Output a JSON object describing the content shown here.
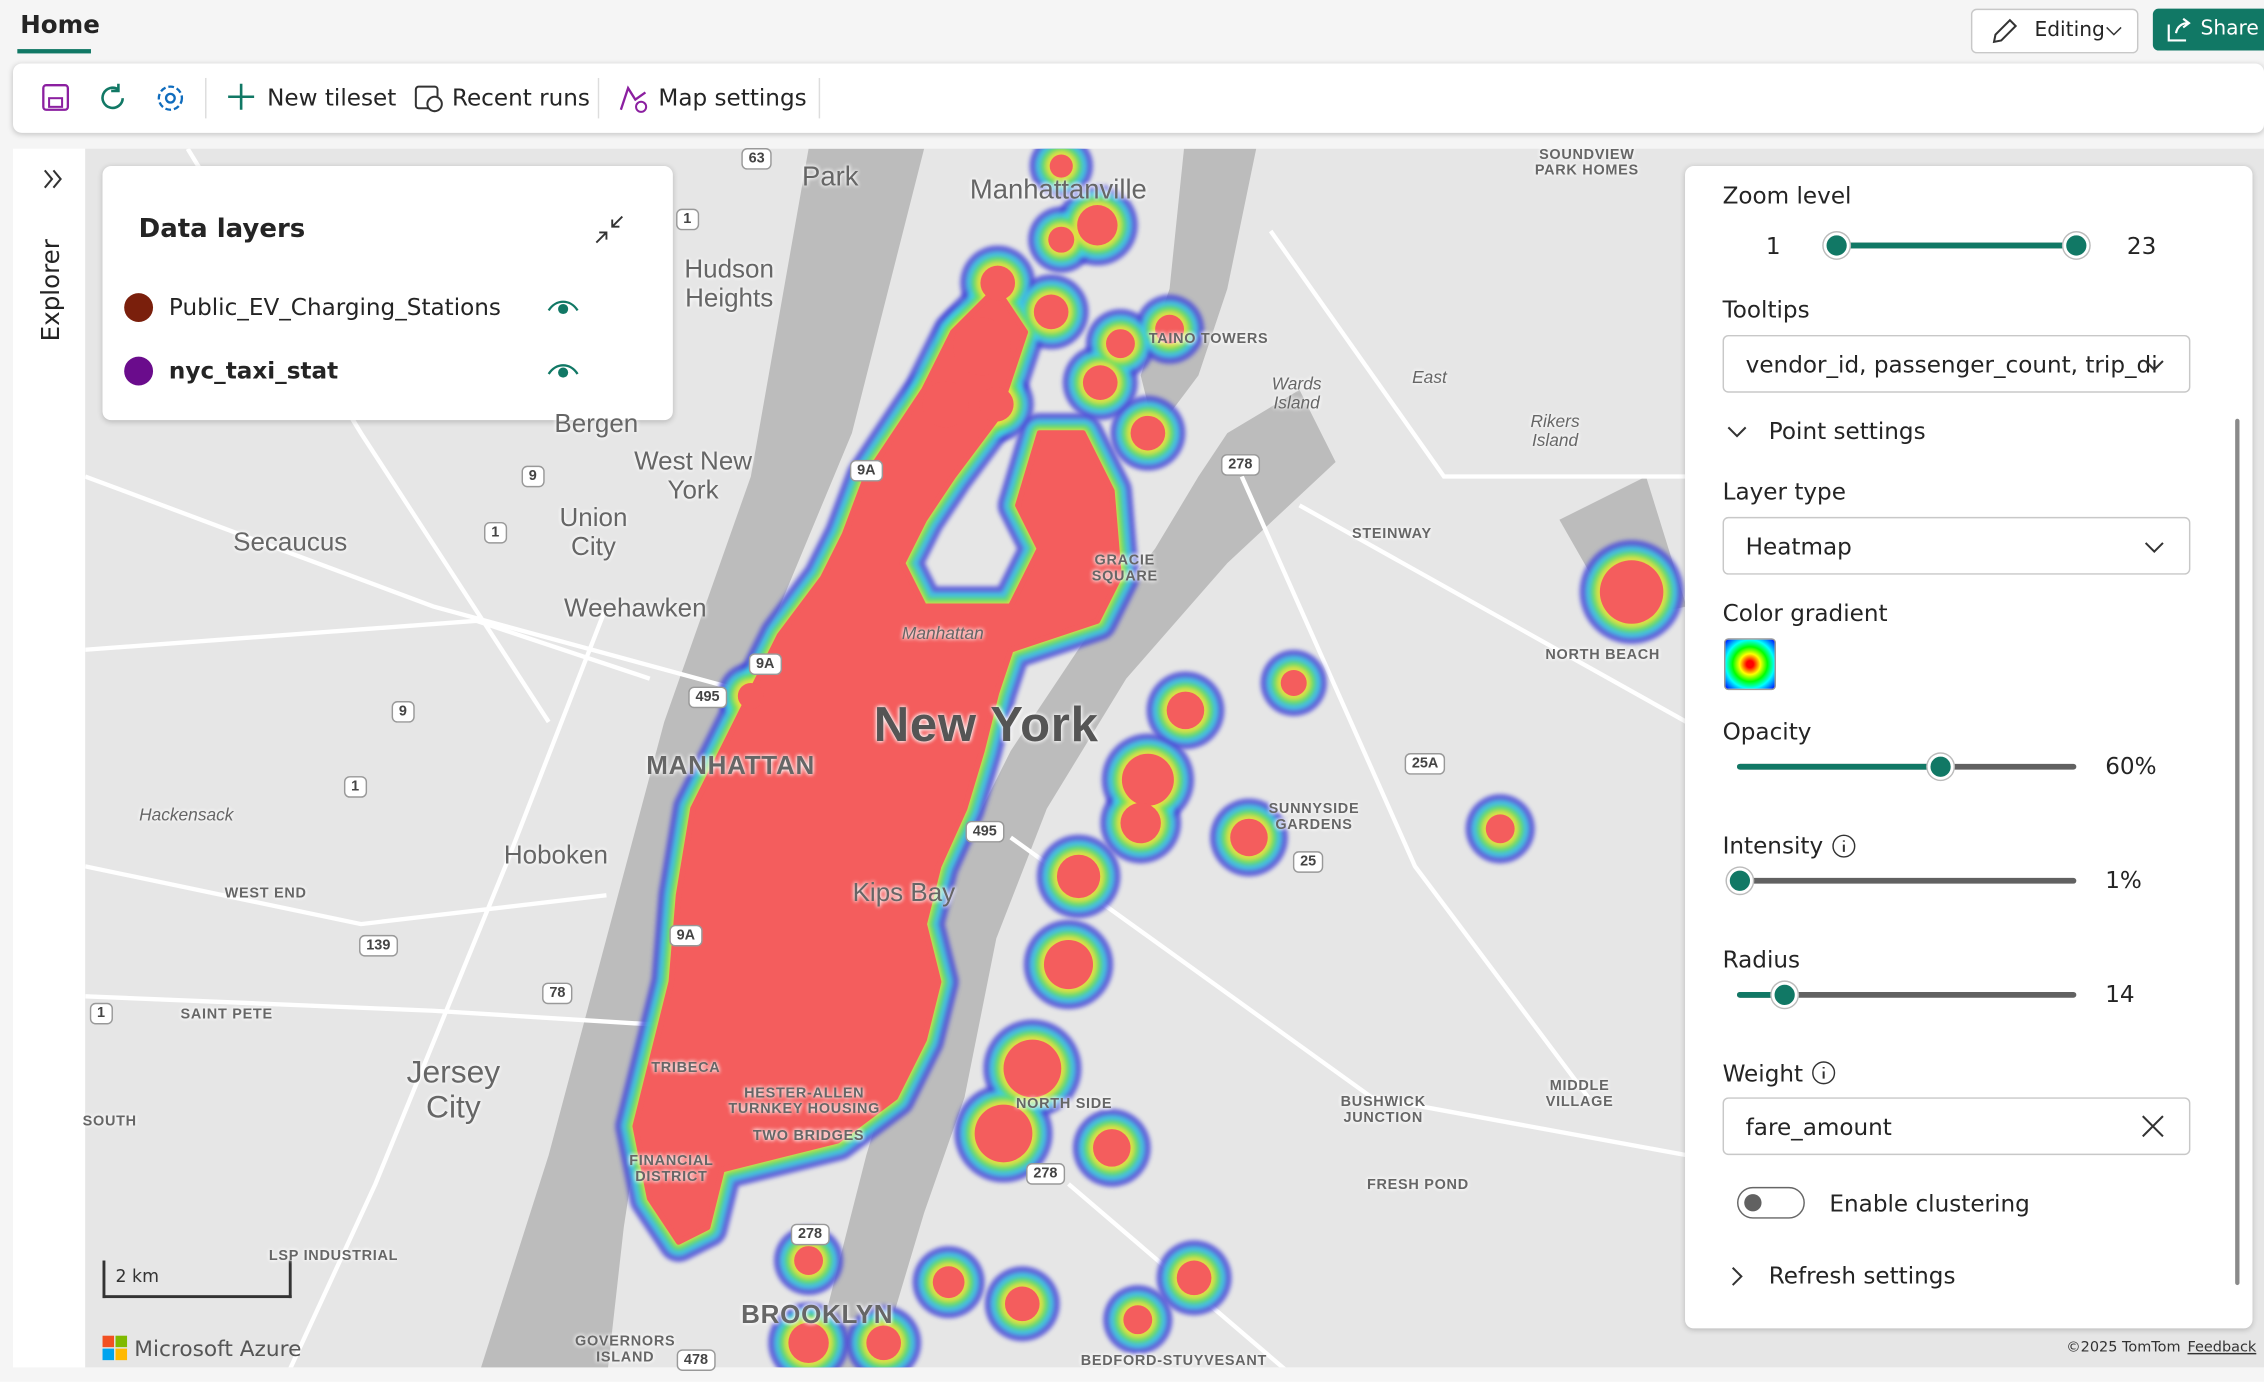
{
  "header": {
    "tab": "Home",
    "editing": "Editing",
    "share": "Share"
  },
  "toolbar": {
    "new_tileset": "New tileset",
    "recent_runs": "Recent runs",
    "map_settings": "Map settings"
  },
  "explorer": "Explorer",
  "data_layers": {
    "title": "Data layers",
    "layers": [
      {
        "name": "Public_EV_Charging_Stations",
        "color": "#7a1f0c"
      },
      {
        "name": "nyc_taxi_stat",
        "color": "#6a0c8c"
      }
    ]
  },
  "map": {
    "labels": [
      "Manhattanville",
      "Park",
      "Hudson\nHeights",
      "Bergen",
      "West New\nYork",
      "Union\nCity",
      "Secaucus",
      "Weehawken",
      "New York",
      "MANHATTAN",
      "Hoboken",
      "Hackensack",
      "Kips Bay",
      "Jersey\nCity",
      "Manhattan",
      "TAINO TOWERS",
      "Wards\nIsland",
      "East",
      "Rikers\nIsland",
      "SOUNDVIEW\nPARK HOMES",
      "STEINWAY",
      "GRACIE\nSQUARE",
      "NORTH BEACH",
      "SUNNYSIDE\nGARDENS",
      "WEST END",
      "SAINT PETE",
      "TRIBECA",
      "HESTER-ALLEN\nTURNKEY HOUSING",
      "TWO BRIDGES",
      "FINANCIAL\nDISTRICT",
      "NORTH SIDE",
      "BUSHWICK\nJUNCTION",
      "MIDDLE\nVILLAGE",
      "FRESH POND",
      "LSP INDUSTRIAL",
      "BROOKLYN",
      "GOVERNORS\nISLAND",
      "BEDFORD-STUYVESANT",
      "SOUTH"
    ],
    "shields": [
      "63",
      "1",
      "9A",
      "9",
      "1",
      "278",
      "9A",
      "495",
      "9",
      "1",
      "25A",
      "495",
      "25",
      "139",
      "9A",
      "78",
      "1",
      "278",
      "278",
      "478"
    ],
    "scale": "2 km",
    "brand": "Microsoft Azure",
    "copyright": "©2025 TomTom",
    "feedback": "Feedback"
  },
  "settings": {
    "zoom": {
      "label": "Zoom level",
      "min": 1,
      "max": 23
    },
    "tooltips": {
      "label": "Tooltips",
      "value": "vendor_id, passenger_count, trip_di"
    },
    "point_settings": "Point settings",
    "layer_type": {
      "label": "Layer type",
      "value": "Heatmap"
    },
    "color_gradient": "Color gradient",
    "opacity": {
      "label": "Opacity",
      "value": 60,
      "display": "60%"
    },
    "intensity": {
      "label": "Intensity",
      "value": 1,
      "display": "1%"
    },
    "radius": {
      "label": "Radius",
      "value": 14
    },
    "weight": {
      "label": "Weight",
      "value": "fare_amount"
    },
    "clustering": "Enable clustering",
    "refresh": "Refresh settings"
  }
}
